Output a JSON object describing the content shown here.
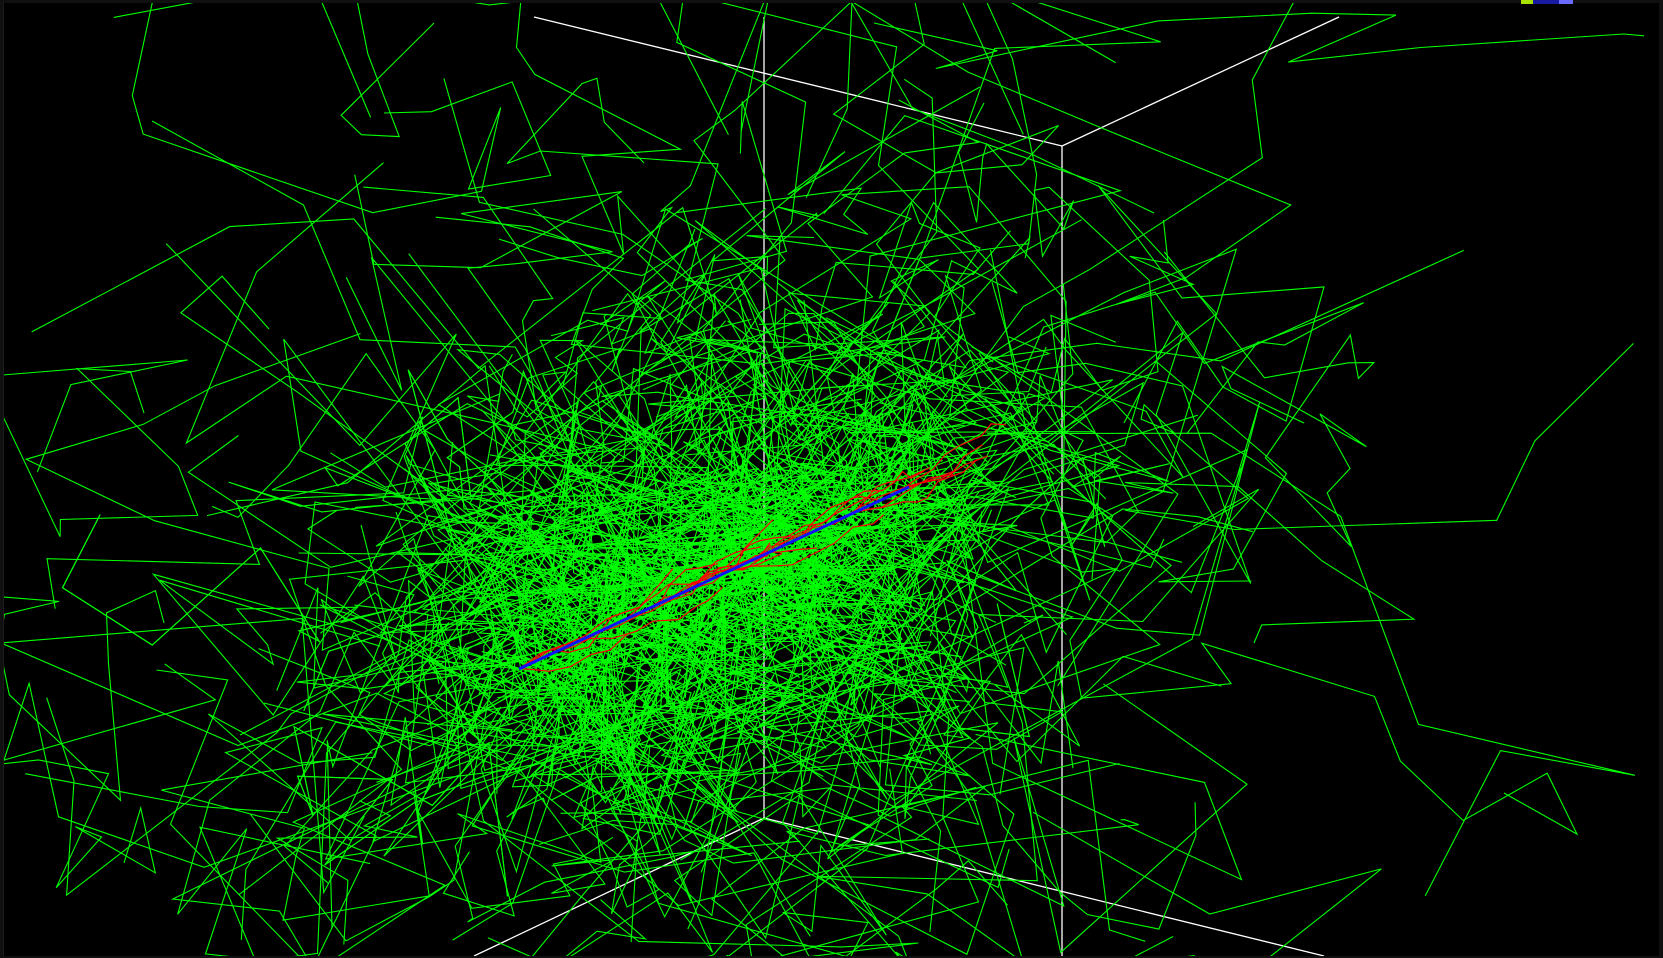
{
  "viewer": {
    "background_color": "#000000",
    "bounding_box_color": "#ffffff",
    "visible_text": ""
  },
  "tracks": {
    "secondary_color": "#00ff00",
    "primary_color": "#ff0000",
    "beam_color": "#1010ff"
  },
  "corner_indicator": {
    "colors": [
      "#a8e000",
      "#1a1aa0",
      "#6a6aff"
    ]
  }
}
